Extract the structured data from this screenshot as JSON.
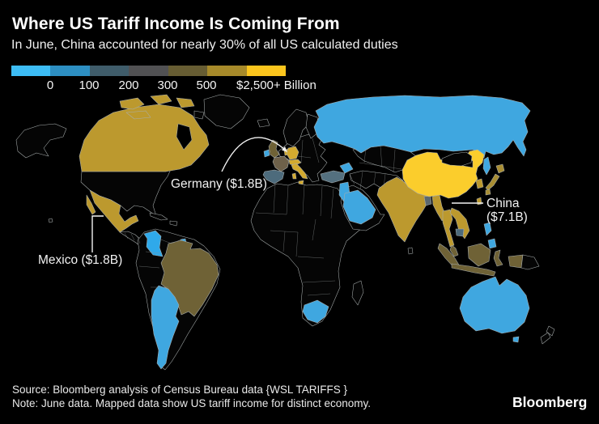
{
  "header": {
    "title": "Where US Tariff Income Is Coming From",
    "subtitle": "In June, China accounted for nearly 30% of all US calculated duties"
  },
  "legend": {
    "colors": [
      "#3dbdf5",
      "#2d8fc2",
      "#3f5c6a",
      "#515153",
      "#675d33",
      "#a78a2a",
      "#fbc51d"
    ],
    "tick_labels": [
      "0",
      "100",
      "200",
      "300",
      "500",
      "$2,500+ Billion"
    ]
  },
  "annotations": {
    "germany": {
      "label": "Germany ($1.8B)"
    },
    "china": {
      "line1": "China",
      "line2": "($7.1B)"
    },
    "mexico": {
      "label": "Mexico ($1.8B)"
    }
  },
  "footer": {
    "source": "Source: Bloomberg analysis of Census Bureau data {WSL TARIFFS }",
    "note": "Note: June data. Mapped data show US tariff income for distinct economy.",
    "brand": "Bloomberg"
  },
  "map": {
    "palette": {
      "yellow": "#fbcd2c",
      "gold": "#bc992e",
      "gold_bright": "#d3aa2f",
      "gold_muted": "#a98e33",
      "olive": "#6f6236",
      "olive_gray": "#6e614a",
      "slate": "#4d6b7c",
      "slate_light": "#54707f",
      "gray_slate": "#5b686f",
      "blue": "#3fa7e0",
      "blue_bright": "#2fa9ea",
      "land": "#050505",
      "water": "#000000"
    },
    "country_colors": {
      "greenland": "land",
      "island_ne": "land",
      "alaska": "land",
      "usa": "land",
      "hudson_bay": "water",
      "central_america": "land",
      "cuba": "land",
      "hispaniola": "land",
      "south_america": "land",
      "europe_east": "land",
      "scandinavia": "land",
      "finland": "land",
      "iceland": "land",
      "africa": "land",
      "madagascar": "land",
      "arabia": "land",
      "iran": "land",
      "central_asia": "land",
      "mongolia": "land",
      "png_east": "land",
      "nz_north": "land",
      "nz_south": "land",
      "sri_lanka": "land",
      "hawaii": "land",
      "canada": "gold",
      "arctic1": "gold",
      "arctic2": "gold",
      "arctic3": "gold",
      "arctic4": "gold",
      "mexico": "gold",
      "baja": "gold",
      "colombia": "blue_bright",
      "brazil": "olive",
      "argentina_chile": "blue",
      "trinidad": "blue",
      "uk": "olive",
      "ireland": "blue",
      "france": "olive_gray",
      "spain": "slate",
      "germany": "gold_bright",
      "benelux": "gold_bright",
      "alps": "gold_bright",
      "italy": "gold_bright",
      "sicily": "gold_bright",
      "sardinia": "gold_bright",
      "russia": "blue",
      "sakhalin": "blue",
      "caucasus": "blue",
      "turkey": "slate_light",
      "levant": "blue",
      "saudi": "blue",
      "south_africa": "blue",
      "india": "gold",
      "bangladesh": "gray_slate",
      "myanmar": "gold",
      "thailand": "gold",
      "vietnam": "gold",
      "cambodia": "slate",
      "malay": "olive",
      "sumatra": "olive",
      "java": "olive",
      "borneo": "olive",
      "sulawesi": "olive",
      "nguinea_west": "olive",
      "philippines_luzon": "blue",
      "philippines_mindanao": "blue",
      "taiwan": "gold",
      "skorea": "gold",
      "japan_hokkaido": "gold_muted",
      "japan_honshu": "gold_muted",
      "japan_kyushu": "gold_muted",
      "china": "yellow",
      "australia": "blue",
      "tasmania": "blue"
    }
  },
  "chart_data": {
    "type": "choropleth",
    "title": "Where US Tariff Income Is Coming From",
    "subtitle": "In June, China accounted for nearly 30% of all US calculated duties",
    "unit": "Billion",
    "color_scale": {
      "tick_labels": [
        "0",
        "100",
        "200",
        "300",
        "500",
        "$2,500+ Billion"
      ],
      "colors": [
        "#3dbdf5",
        "#2d8fc2",
        "#3f5c6a",
        "#515153",
        "#675d33",
        "#a78a2a",
        "#fbc51d"
      ]
    },
    "annotated_values": [
      {
        "name": "China",
        "value_usd_billion": 7.1,
        "label": "China ($7.1B)"
      },
      {
        "name": "Germany",
        "value_usd_billion": 1.8,
        "label": "Germany ($1.8B)"
      },
      {
        "name": "Mexico",
        "value_usd_billion": 1.8,
        "label": "Mexico ($1.8B)"
      }
    ],
    "country_shading_bins": {
      "China": "2,500+",
      "Canada": "500-2,500",
      "Mexico": "500-2,500",
      "Germany": "500-2,500",
      "Italy": "500-2,500",
      "Switzerland": "500-2,500",
      "India": "500-2,500",
      "Thailand": "500-2,500",
      "Vietnam": "500-2,500",
      "Myanmar": "500-2,500",
      "Japan": "500-2,500",
      "South Korea": "500-2,500",
      "Taiwan": "500-2,500",
      "United Kingdom": "300-500",
      "France": "300-500",
      "Brazil": "300-500",
      "Indonesia": "300-500",
      "Malaysia": "300-500",
      "Bangladesh": "200-300",
      "Spain": "100-200",
      "Turkey": "100-200",
      "Cambodia": "100-200",
      "Russia": "0-100",
      "Saudi Arabia": "0-100",
      "South Africa": "0-100",
      "Australia": "0-100",
      "Colombia": "0-100",
      "Argentina": "0-100",
      "Chile": "0-100",
      "Philippines": "0-100",
      "Ireland": "0-100"
    }
  }
}
